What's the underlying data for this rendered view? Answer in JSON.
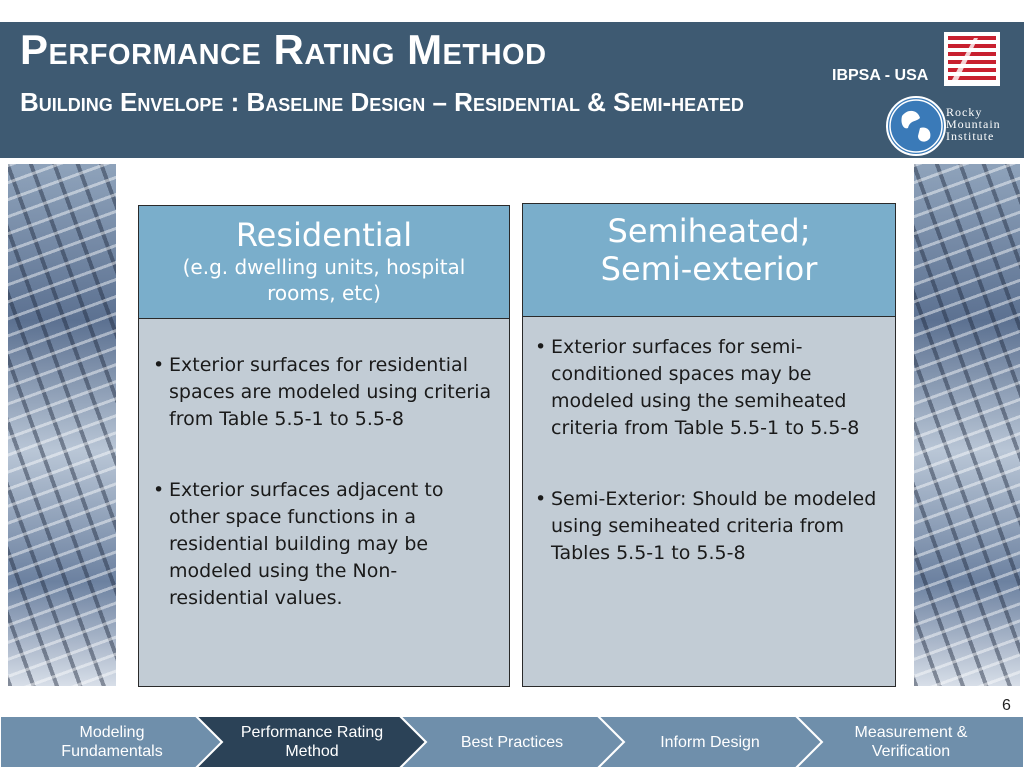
{
  "header": {
    "title": "Performance Rating Method",
    "subtitle": "Building Envelope : Baseline Design – Residential & Semi-heated",
    "org": "IBPSA - USA",
    "logo_text": [
      "Rocky",
      "Mountain",
      "Institute"
    ]
  },
  "columns": [
    {
      "heading": "Residential",
      "subheading": "(e.g. dwelling units, hospital rooms, etc)",
      "bullets": [
        "Exterior surfaces for residential spaces are modeled using criteria from Table 5.5-1 to 5.5-8",
        "Exterior surfaces adjacent to other space functions in a residential building may be modeled using the Non-residential values."
      ]
    },
    {
      "heading": "Semiheated; Semi-exterior",
      "bullets": [
        "Exterior surfaces for semi-conditioned spaces may be modeled using the semiheated criteria from Table 5.5-1 to 5.5-8",
        "Semi-Exterior: Should be modeled using  semiheated criteria from Tables 5.5-1 to 5.5-8"
      ]
    }
  ],
  "page_number": "6",
  "nav": [
    {
      "label": "Modeling Fundamentals",
      "active": false
    },
    {
      "label": "Performance Rating Method",
      "active": true
    },
    {
      "label": "Best Practices",
      "active": false
    },
    {
      "label": "Inform Design",
      "active": false
    },
    {
      "label": "Measurement & Verification",
      "active": false
    }
  ],
  "colors": {
    "header_bg": "#3e5a72",
    "column_head": "#7aaecb",
    "column_body": "#c2ccd5",
    "nav_bg": "#6f8fab",
    "nav_active": "#2b4257"
  }
}
